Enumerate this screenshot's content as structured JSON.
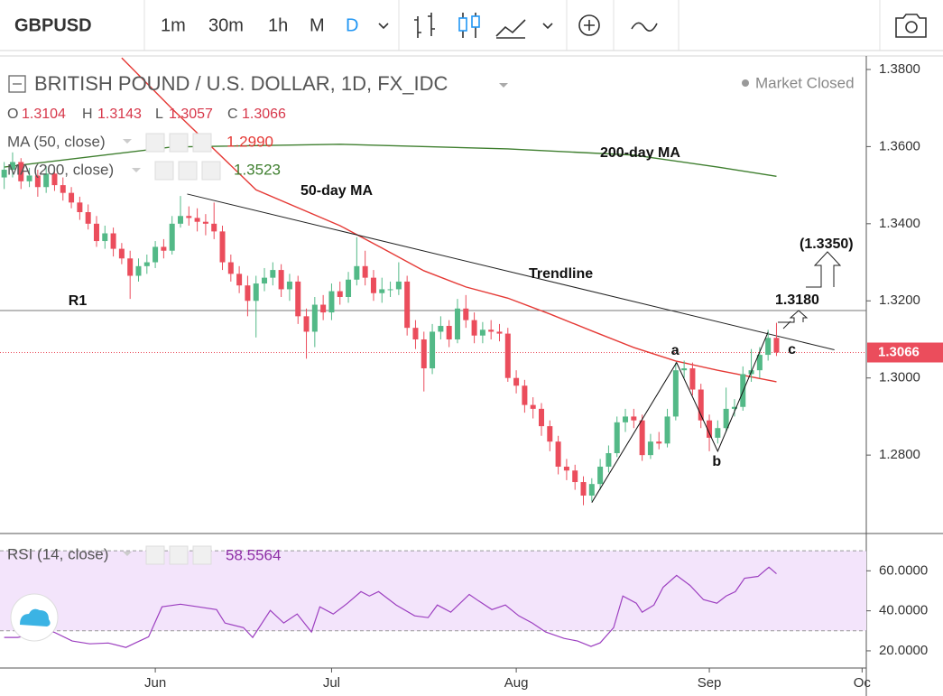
{
  "toolbar": {
    "symbol": "GBPUSD",
    "intervals": [
      "1m",
      "30m",
      "1h",
      "M",
      "D"
    ]
  },
  "chart_data": [
    {
      "type": "candlestick",
      "title": "BRITISH POUND / U.S. DOLLAR, 1D, FX_IDC",
      "status": "Market Closed",
      "ohlc_letters": [
        "O",
        "H",
        "L",
        "C"
      ],
      "up_color": "#53b987",
      "down_color": "#eb4d5c",
      "open": [
        1.352,
        1.354,
        1.356,
        1.351,
        1.3525,
        1.3495,
        1.353,
        1.35,
        1.348,
        1.3455,
        1.343,
        1.34,
        1.3355,
        1.3375,
        1.3335,
        1.331,
        1.3265,
        1.329,
        1.33,
        1.334,
        1.333,
        1.34,
        1.342,
        1.3415,
        1.3405,
        1.34,
        1.338,
        1.33,
        1.327,
        1.324,
        1.32,
        1.3245,
        1.326,
        1.328,
        1.323,
        1.325,
        1.316,
        1.312,
        1.319,
        1.317,
        1.3225,
        1.321,
        1.3255,
        1.329,
        1.326,
        1.322,
        1.323,
        1.323,
        1.325,
        1.313,
        1.31,
        1.3025,
        1.312,
        1.3135,
        1.31,
        1.318,
        1.315,
        1.311,
        1.3125,
        1.312,
        1.3115,
        1.3,
        1.298,
        1.293,
        1.292,
        1.2875,
        1.2835,
        1.277,
        1.276,
        1.273,
        1.2695,
        1.2725,
        1.277,
        1.2805,
        1.2885,
        1.29,
        1.289,
        1.28,
        1.2835,
        1.283,
        1.29,
        1.302,
        1.3025,
        1.297,
        1.289,
        1.2845,
        1.287,
        1.292,
        1.2925,
        1.301,
        1.302,
        1.306,
        1.3104
      ],
      "high": [
        1.356,
        1.3585,
        1.357,
        1.3545,
        1.354,
        1.355,
        1.3545,
        1.352,
        1.3495,
        1.347,
        1.345,
        1.342,
        1.3395,
        1.339,
        1.335,
        1.333,
        1.331,
        1.332,
        1.3355,
        1.336,
        1.342,
        1.3472,
        1.3445,
        1.344,
        1.3425,
        1.3455,
        1.3395,
        1.332,
        1.329,
        1.3265,
        1.3265,
        1.3285,
        1.33,
        1.3295,
        1.327,
        1.3265,
        1.318,
        1.321,
        1.3215,
        1.3245,
        1.325,
        1.3275,
        1.3365,
        1.333,
        1.328,
        1.326,
        1.325,
        1.33,
        1.3265,
        1.315,
        1.312,
        1.314,
        1.316,
        1.315,
        1.3205,
        1.3215,
        1.317,
        1.3145,
        1.315,
        1.314,
        1.313,
        1.302,
        1.2995,
        1.295,
        1.2935,
        1.289,
        1.285,
        1.279,
        1.2775,
        1.2745,
        1.274,
        1.279,
        1.2825,
        1.29,
        1.292,
        1.292,
        1.2905,
        1.2855,
        1.286,
        1.292,
        1.304,
        1.3045,
        1.304,
        1.2985,
        1.2905,
        1.289,
        1.2975,
        1.2945,
        1.303,
        1.3075,
        1.308,
        1.3125,
        1.3143
      ],
      "low": [
        1.349,
        1.352,
        1.349,
        1.3495,
        1.347,
        1.348,
        1.3485,
        1.346,
        1.344,
        1.341,
        1.3385,
        1.334,
        1.3335,
        1.3315,
        1.3295,
        1.3205,
        1.325,
        1.327,
        1.3285,
        1.331,
        1.332,
        1.339,
        1.3395,
        1.338,
        1.337,
        1.336,
        1.328,
        1.325,
        1.322,
        1.316,
        1.3105,
        1.3225,
        1.324,
        1.321,
        1.32,
        1.314,
        1.305,
        1.308,
        1.315,
        1.315,
        1.319,
        1.3195,
        1.324,
        1.324,
        1.32,
        1.3195,
        1.321,
        1.3215,
        1.311,
        1.3075,
        1.2965,
        1.301,
        1.31,
        1.308,
        1.309,
        1.313,
        1.309,
        1.309,
        1.31,
        1.3095,
        1.299,
        1.296,
        1.291,
        1.2895,
        1.285,
        1.281,
        1.275,
        1.2735,
        1.271,
        1.267,
        1.268,
        1.271,
        1.2755,
        1.2795,
        1.286,
        1.287,
        1.2785,
        1.279,
        1.2815,
        1.282,
        1.289,
        1.3,
        1.2955,
        1.287,
        1.281,
        1.283,
        1.286,
        1.29,
        1.2915,
        1.299,
        1.3,
        1.3045,
        1.3057
      ],
      "close": [
        1.354,
        1.356,
        1.351,
        1.3525,
        1.3495,
        1.353,
        1.35,
        1.348,
        1.3455,
        1.343,
        1.34,
        1.3355,
        1.3375,
        1.3335,
        1.331,
        1.3265,
        1.329,
        1.33,
        1.334,
        1.333,
        1.34,
        1.342,
        1.3415,
        1.3405,
        1.34,
        1.338,
        1.33,
        1.327,
        1.324,
        1.32,
        1.3245,
        1.326,
        1.328,
        1.323,
        1.325,
        1.316,
        1.312,
        1.319,
        1.317,
        1.3225,
        1.321,
        1.3255,
        1.329,
        1.326,
        1.322,
        1.323,
        1.323,
        1.325,
        1.313,
        1.31,
        1.3025,
        1.312,
        1.3135,
        1.31,
        1.318,
        1.315,
        1.311,
        1.3125,
        1.312,
        1.3115,
        1.3,
        1.298,
        1.293,
        1.292,
        1.2875,
        1.2835,
        1.277,
        1.276,
        1.273,
        1.2695,
        1.2725,
        1.277,
        1.2805,
        1.2885,
        1.29,
        1.289,
        1.28,
        1.2835,
        1.283,
        1.29,
        1.302,
        1.3025,
        1.297,
        1.289,
        1.2845,
        1.287,
        1.292,
        1.2925,
        1.301,
        1.302,
        1.306,
        1.3104,
        1.3066
      ],
      "xlim": [
        -0.5,
        102.7
      ],
      "xticks": [
        {
          "value": 18,
          "label": "Jun"
        },
        {
          "value": 39,
          "label": "Jul"
        },
        {
          "value": 61,
          "label": "Aug"
        },
        {
          "value": 84,
          "label": "Sep"
        },
        {
          "value": 102.2,
          "label": "Oc"
        }
      ],
      "ylim": [
        1.2599,
        1.3835
      ],
      "yticks": [
        {
          "value": 1.28,
          "label": "1.2800"
        },
        {
          "value": 1.3,
          "label": "1.3000"
        },
        {
          "value": 1.32,
          "label": "1.3200"
        },
        {
          "value": 1.34,
          "label": "1.3400"
        },
        {
          "value": 1.36,
          "label": "1.3600"
        },
        {
          "value": 1.38,
          "label": "1.3800"
        }
      ],
      "overlays": [
        {
          "name": "MA (50, close)",
          "last_label": "1.2990",
          "color": "#e53935",
          "x": [
            14,
            20,
            30,
            40,
            45,
            50,
            55,
            60,
            65,
            70,
            75,
            80,
            85,
            92
          ],
          "values": [
            1.383,
            1.3698,
            1.3488,
            1.3395,
            1.3337,
            1.3278,
            1.3236,
            1.3207,
            1.3166,
            1.3122,
            1.3079,
            1.3044,
            1.302,
            1.299
          ]
        },
        {
          "name": "MA (200, close)",
          "last_label": "1.3523",
          "color": "#3f7f2f",
          "x": [
            0,
            20,
            40,
            60,
            75,
            85,
            92
          ],
          "values": [
            1.3547,
            1.3599,
            1.3606,
            1.3594,
            1.3578,
            1.3547,
            1.3523
          ]
        }
      ],
      "trendline": {
        "x": [
          21.8,
          98.9
        ],
        "values": [
          1.3477,
          1.3073
        ]
      },
      "wave": {
        "x": [
          70,
          80.1,
          85,
          91
        ],
        "values": [
          1.2677,
          1.304,
          1.281,
          1.3119
        ],
        "labels": [
          "a",
          "b",
          "c"
        ]
      },
      "support": {
        "name": "R1",
        "value": 1.3175
      },
      "annotations": [
        "200-day MA",
        "50-day MA",
        "Trendline",
        "1.3180",
        "(1.3350)"
      ]
    },
    {
      "type": "line",
      "name": "RSI (14, close)",
      "color": "#9c3fc0",
      "x": [
        0,
        1.6,
        3.8,
        5.9,
        8.1,
        10.2,
        12.4,
        14.5,
        15.6,
        17.2,
        18.8,
        21.0,
        23.1,
        25.3,
        26.3,
        28.5,
        29.6,
        31.7,
        33.3,
        34.9,
        36.6,
        37.6,
        39.2,
        40.9,
        42.5,
        43.5,
        44.6,
        46.7,
        48.9,
        50.5,
        51.6,
        53.2,
        55.4,
        56.5,
        58.1,
        59.7,
        61.3,
        62.9,
        64.5,
        66.7,
        68.3,
        69.9,
        71.0,
        72.6,
        73.7,
        75.3,
        76.0,
        77.4,
        78.5,
        80.1,
        81.7,
        83.3,
        84.9,
        86.0,
        87.1,
        88.2,
        89.8,
        91.1,
        92.0
      ],
      "values": [
        26.7,
        26.7,
        28.5,
        29.4,
        24.9,
        23.5,
        23.9,
        21.7,
        23.9,
        27.0,
        42.0,
        43.3,
        42.0,
        40.6,
        33.9,
        31.6,
        26.7,
        40.2,
        33.9,
        38.4,
        29.4,
        42.0,
        38.4,
        43.8,
        49.6,
        47.4,
        49.6,
        42.9,
        37.5,
        36.6,
        42.9,
        39.3,
        48.2,
        45.0,
        40.6,
        42.9,
        37.5,
        33.9,
        29.4,
        26.2,
        24.9,
        22.2,
        24.0,
        31.6,
        47.4,
        43.8,
        39.3,
        42.9,
        51.8,
        57.7,
        52.7,
        45.6,
        43.8,
        47.4,
        49.6,
        56.3,
        57.2,
        61.8,
        58.5564
      ],
      "ylim": [
        11.4,
        78.2
      ],
      "yticks": [
        {
          "value": 20,
          "label": "20.0000"
        },
        {
          "value": 40,
          "label": "40.0000"
        },
        {
          "value": 60,
          "label": "60.0000"
        }
      ],
      "band": [
        30,
        70
      ]
    }
  ]
}
